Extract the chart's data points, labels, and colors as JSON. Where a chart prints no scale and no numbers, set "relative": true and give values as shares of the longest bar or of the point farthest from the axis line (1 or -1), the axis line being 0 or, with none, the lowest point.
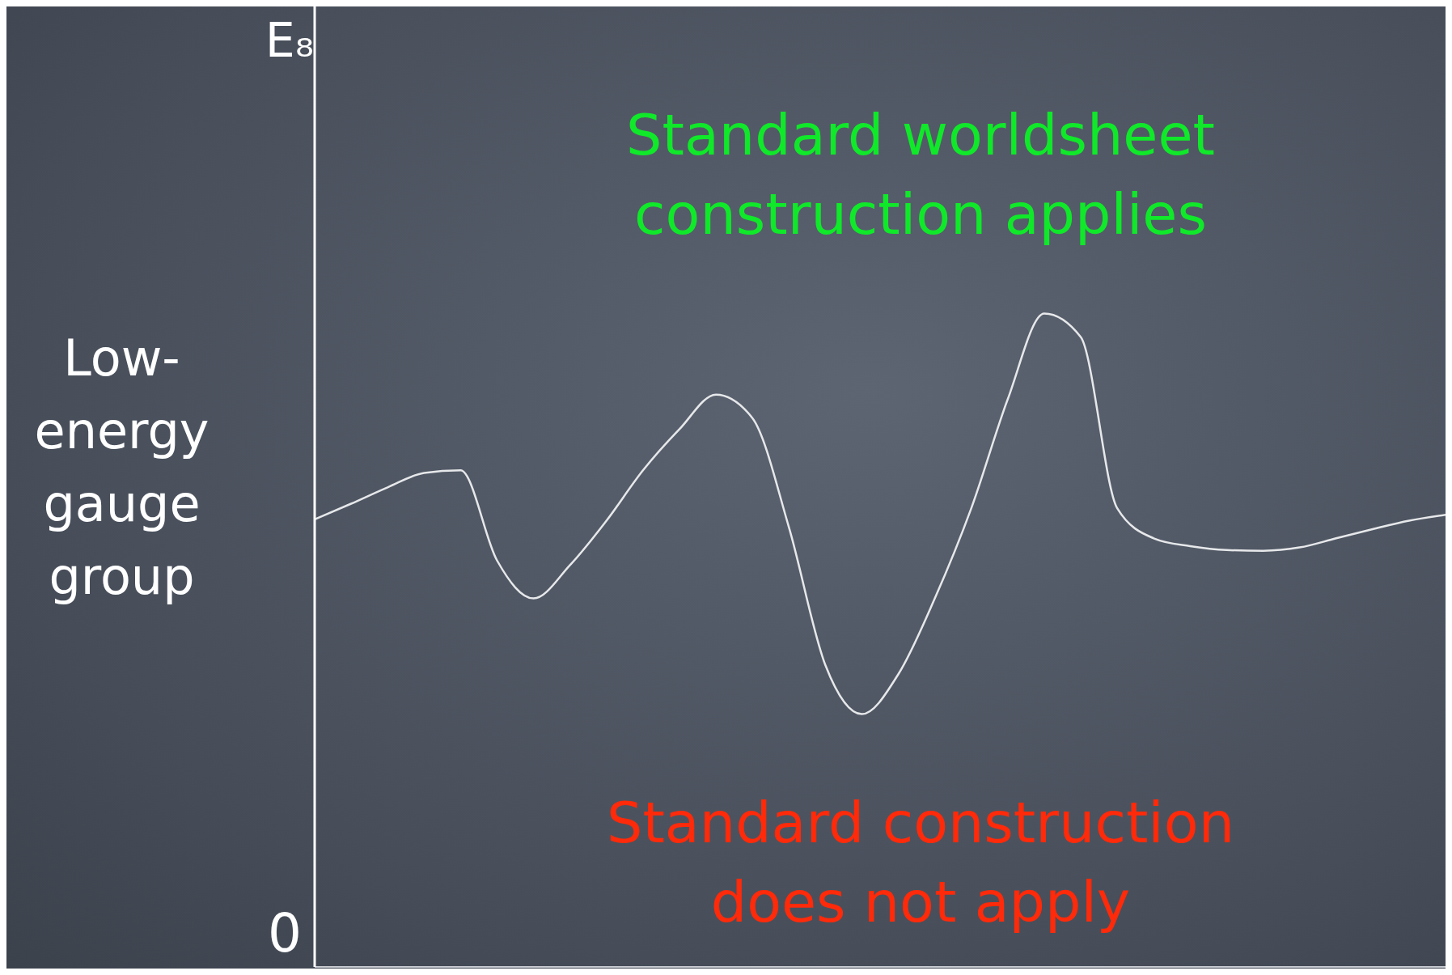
{
  "chart_data": {
    "type": "line",
    "relative": true,
    "ylabel": "Low-energy gauge group",
    "annotations": [
      "E₈",
      "0",
      "Standard worldsheet construction applies",
      "Standard construction does not apply"
    ],
    "categories": [
      null,
      null,
      null,
      null,
      null,
      null,
      null,
      null,
      null,
      null,
      null,
      null,
      null,
      null,
      null,
      null,
      null,
      null,
      null,
      null,
      null,
      null,
      null,
      null,
      null,
      null,
      null,
      null,
      null,
      null,
      null,
      null
    ],
    "color": "#e6e8ea",
    "values": [
      0.685,
      0.709,
      0.734,
      0.756,
      0.76,
      0.622,
      0.564,
      0.615,
      0.683,
      0.76,
      0.823,
      0.876,
      0.84,
      0.673,
      0.462,
      0.387,
      0.448,
      0.564,
      0.702,
      0.869,
      1,
      0.964,
      0.702,
      0.656,
      0.644,
      0.638,
      0.637,
      0.642,
      0.656,
      0.67,
      0.683,
      0.692
    ],
    "marker": "none",
    "line_style": "solid"
  }
}
